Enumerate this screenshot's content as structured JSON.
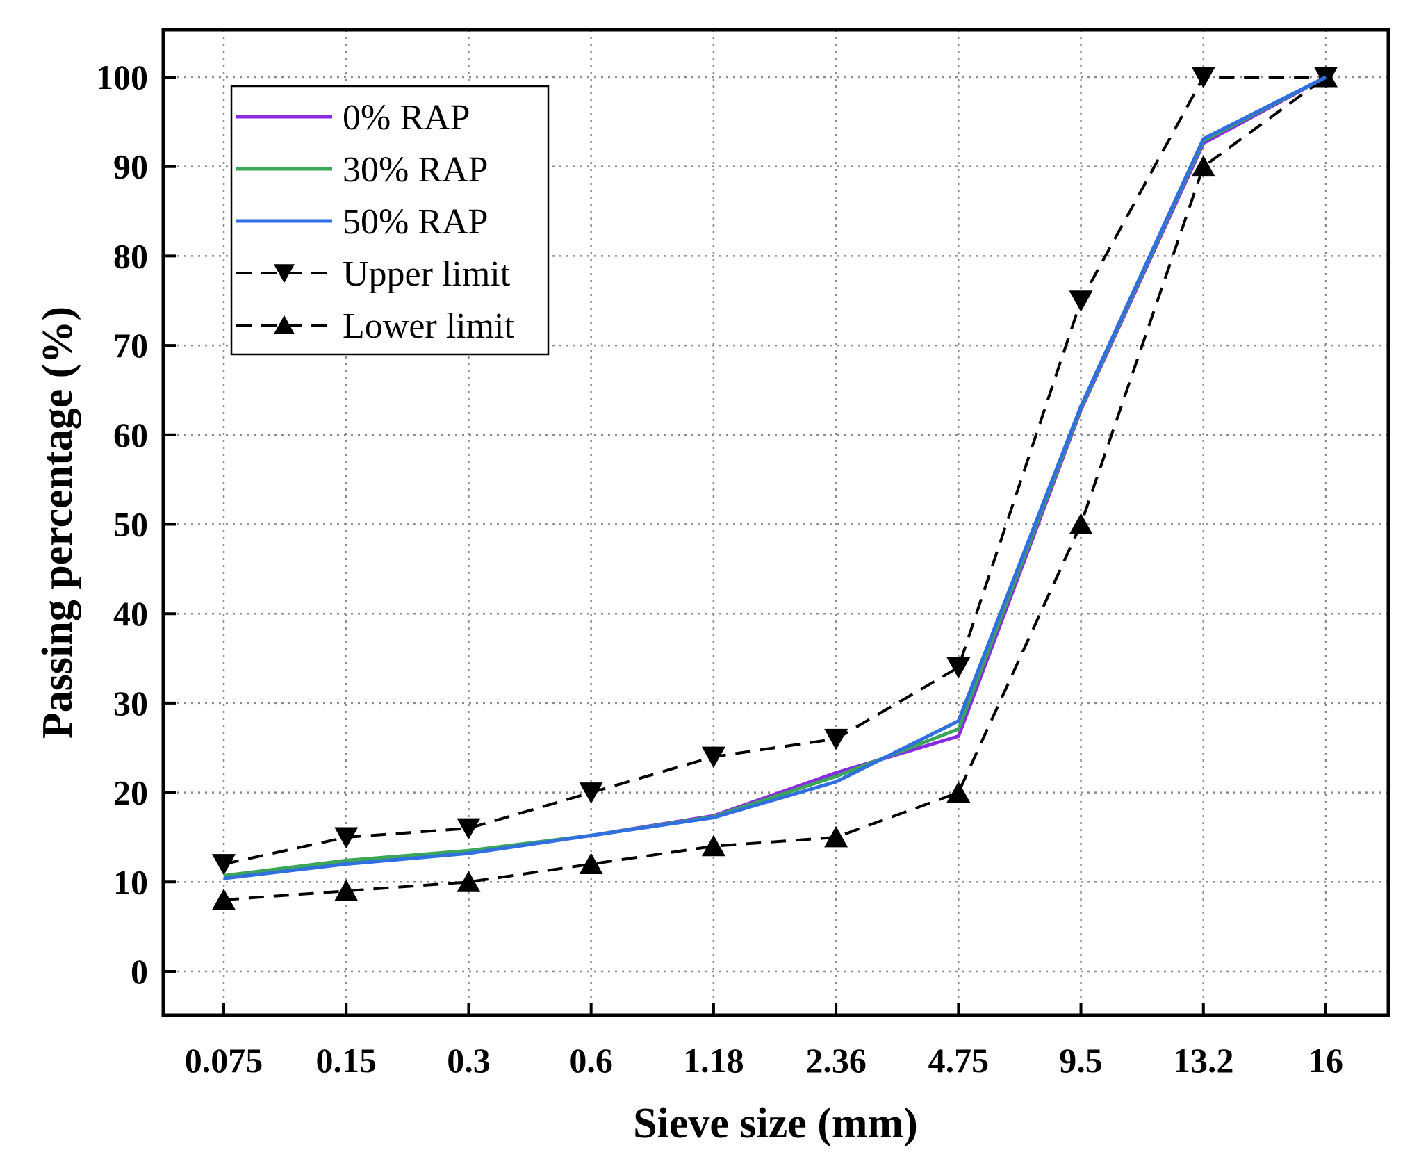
{
  "chart_data": {
    "type": "line",
    "title": "",
    "xlabel": "Sieve size (mm)",
    "ylabel": "Passing percentage (%)",
    "categories": [
      "0.075",
      "0.15",
      "0.3",
      "0.6",
      "1.18",
      "2.36",
      "4.75",
      "9.5",
      "13.2",
      "16"
    ],
    "ylim": [
      -5,
      105
    ],
    "yticks": [
      "0",
      "10",
      "20",
      "30",
      "40",
      "50",
      "60",
      "70",
      "80",
      "90",
      "100"
    ],
    "grid": true,
    "legend_position": "top-left",
    "series": [
      {
        "name": "0% RAP",
        "color": "#8a2be2",
        "style": "solid",
        "marker": "none",
        "values": [
          10.5,
          12.2,
          13.4,
          15.2,
          17.4,
          22.2,
          26.3,
          62.8,
          92.6,
          100
        ]
      },
      {
        "name": "30% RAP",
        "color": "#3aa657",
        "style": "solid",
        "marker": "none",
        "values": [
          10.7,
          12.4,
          13.5,
          15.2,
          17.3,
          21.8,
          27.1,
          63.0,
          92.9,
          100
        ]
      },
      {
        "name": "50% RAP",
        "color": "#2f6fe0",
        "style": "solid",
        "marker": "none",
        "values": [
          10.4,
          12.0,
          13.2,
          15.2,
          17.2,
          21.2,
          28.0,
          63.2,
          93.1,
          100
        ]
      },
      {
        "name": "Upper limit",
        "color": "#000000",
        "style": "dashed",
        "marker": "triangle-down",
        "values": [
          12,
          15,
          16,
          20,
          24,
          26,
          34,
          75,
          100,
          100
        ]
      },
      {
        "name": "Lower limit",
        "color": "#000000",
        "style": "dashed",
        "marker": "triangle-up",
        "values": [
          8,
          9,
          10,
          12,
          14,
          15,
          20,
          50,
          90,
          100
        ]
      }
    ]
  }
}
